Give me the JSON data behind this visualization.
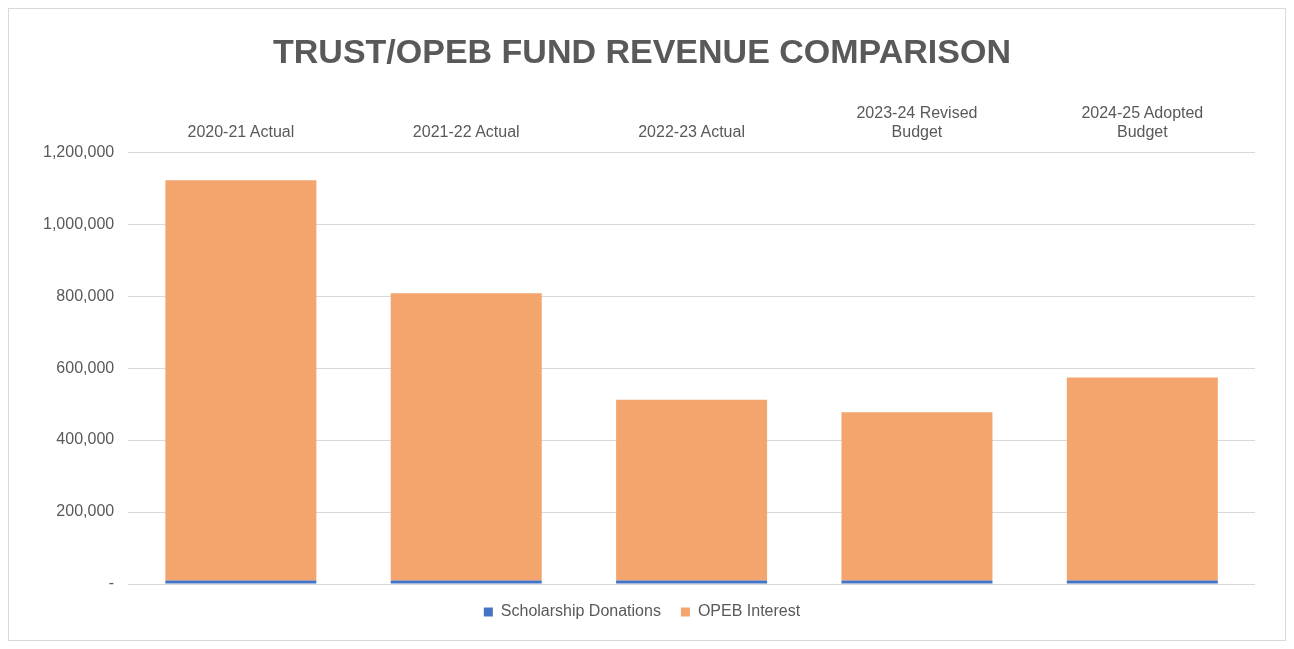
{
  "chart_data": {
    "type": "bar",
    "title": "TRUST/OPEB FUND REVENUE COMPARISON",
    "categories": [
      "2020-21 Actual",
      "2021-22 Actual",
      "2022-23 Actual",
      "2023-24 Revised Budget",
      "2024-25 Adopted Budget"
    ],
    "series": [
      {
        "name": "Scholarship Donations",
        "color": "#4472c4",
        "values": [
          10000,
          10000,
          10000,
          10000,
          10000
        ]
      },
      {
        "name": "OPEB Interest",
        "color": "#f4a56e",
        "values": [
          1112000,
          798000,
          502000,
          467000,
          564000
        ]
      }
    ],
    "stacked": true,
    "ylim": [
      0,
      1200000
    ],
    "yticks": [
      {
        "value": 0,
        "label": "-"
      },
      {
        "value": 200000,
        "label": "200,000"
      },
      {
        "value": 400000,
        "label": "400,000"
      },
      {
        "value": 600000,
        "label": "600,000"
      },
      {
        "value": 800000,
        "label": "800,000"
      },
      {
        "value": 1000000,
        "label": "1,000,000"
      },
      {
        "value": 1200000,
        "label": "1,200,000"
      }
    ],
    "grid": "y",
    "legend": "bottom"
  }
}
